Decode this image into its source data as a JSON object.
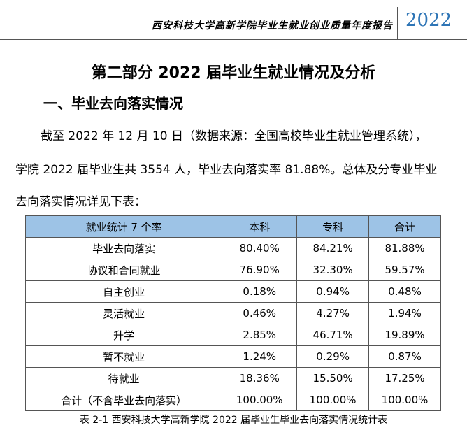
{
  "header": {
    "report_title": "西安科技大学高新学院毕业生就业创业质量年度报告",
    "year": "2022"
  },
  "part_title": "第二部分  2022 届毕业生就业情况及分析",
  "section_title": "一、毕业去向落实情况",
  "paragraph": [
    "截至 2022 年 12 月 10 日（数据来源：全国高校毕业生就业管理系统），",
    "学院 2022 届毕业生共 3554 人，毕业去向落实率 81.88%。总体及分专业毕业",
    "去向落实情况详见下表："
  ],
  "table": {
    "columns": [
      "就业统计 7 个率",
      "本科",
      "专科",
      "合计"
    ],
    "rows": [
      [
        "毕业去向落实",
        "80.40%",
        "84.21%",
        "81.88%"
      ],
      [
        "协议和合同就业",
        "76.90%",
        "32.30%",
        "59.57%"
      ],
      [
        "自主创业",
        "0.18%",
        "0.94%",
        "0.48%"
      ],
      [
        "灵活就业",
        "0.46%",
        "4.27%",
        "1.94%"
      ],
      [
        "升学",
        "2.85%",
        "46.71%",
        "19.89%"
      ],
      [
        "暂不就业",
        "1.24%",
        "0.29%",
        "0.87%"
      ],
      [
        "待就业",
        "18.36%",
        "15.50%",
        "17.25%"
      ],
      [
        "合计（不含毕业去向落实）",
        "100.00%",
        "100.00%",
        "100.00%"
      ]
    ]
  },
  "caption": "表 2-1 西安科技大学高新学院 2022 届毕业生毕业去向落实情况统计表"
}
